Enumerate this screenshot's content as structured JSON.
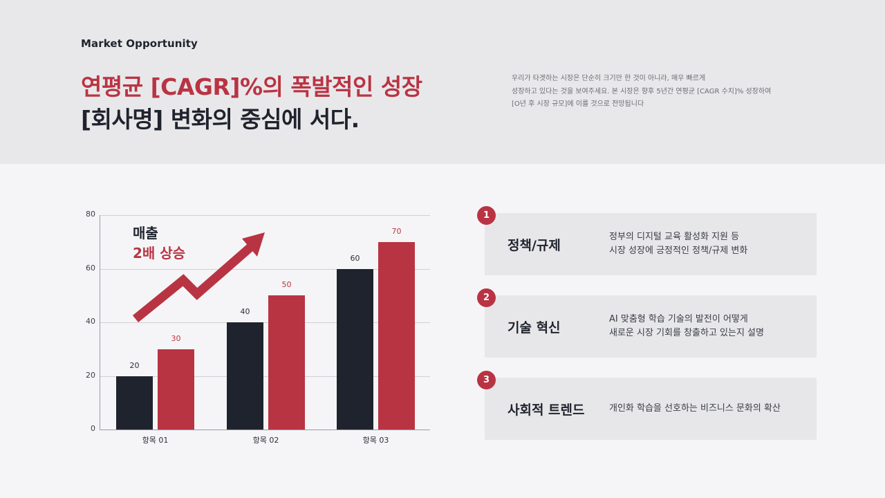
{
  "header": {
    "eyebrow": "Market Opportunity",
    "headline_line1": "연평균 [CAGR]%의 폭발적인 성장",
    "headline_line2": "[회사명] 변화의 중심에 서다.",
    "summary_lines": [
      "우리가 타겟하는 시장은 단순히 크기만 한 것이 아니라, 매우 빠르게",
      "성장하고 있다는 것을 보여주세요. 본 시장은 향후 5년간 연평균 [CAGR 수치]% 성장하여",
      "[O년 후 시장 규모]에 이를 것으로 전망됩니다"
    ]
  },
  "colors": {
    "accent_red": "#b93443",
    "dark_navy": "#1f232d",
    "header_bg": "#e8e8ea",
    "page_bg": "#f5f5f7",
    "card_bg": "#e7e7e9"
  },
  "callout": {
    "line1": "매출",
    "line2": "2배 상승",
    "icon": "trend-up-arrow-icon"
  },
  "chart_data": {
    "type": "bar",
    "title": "",
    "xlabel": "",
    "ylabel": "",
    "categories": [
      "항목 01",
      "항목 02",
      "항목 03"
    ],
    "series": [
      {
        "name": "series-dark",
        "color": "#1f232d",
        "values": [
          20,
          40,
          60
        ]
      },
      {
        "name": "series-red",
        "color": "#b93443",
        "values": [
          30,
          50,
          70
        ]
      }
    ],
    "ylim": [
      0,
      80
    ],
    "yticks": [
      0,
      20,
      40,
      60,
      80
    ],
    "grid": true,
    "legend": "none",
    "data_labels": true,
    "annotations": [
      "매출",
      "2배 상승"
    ]
  },
  "cards": [
    {
      "number": "1",
      "title": "정책/규제",
      "desc": [
        "정부의 디지털 교육 활성화 지원 등",
        "시장 성장에 긍정적인 정책/규제 변화"
      ]
    },
    {
      "number": "2",
      "title": "기술 혁신",
      "desc": [
        "AI 맞춤형 학습 기술의 발전이 어떻게",
        "새로운 시장 기회를 창출하고 있는지 설명"
      ]
    },
    {
      "number": "3",
      "title": "사회적 트렌드",
      "desc": [
        "개인화 학습을 선호하는 비즈니스 문화의 확산"
      ]
    }
  ]
}
